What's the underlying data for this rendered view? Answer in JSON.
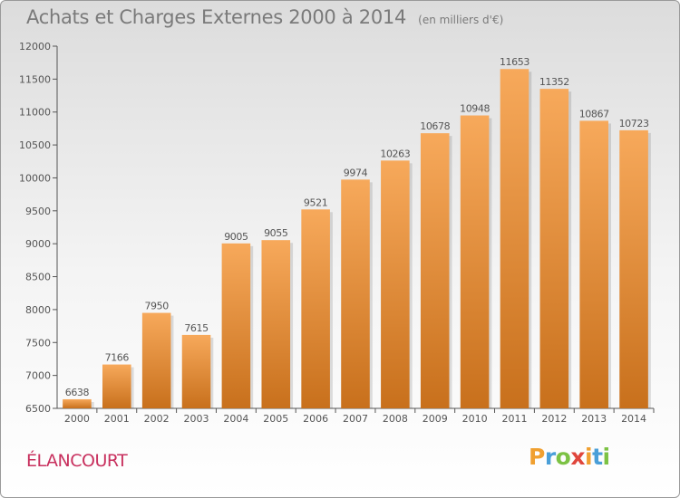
{
  "header": {
    "title": "Achats et Charges Externes 2000 à 2014",
    "unit": "(en milliers d'€)"
  },
  "footer": {
    "commune": "ÉLANCOURT",
    "logo_letters": [
      "P",
      "r",
      "o",
      "x",
      "i",
      "t",
      "i"
    ]
  },
  "colors": {
    "bar_top": "#f7a95b",
    "bar_bottom": "#c8701c",
    "axis": "#555555",
    "grid": "#cfcfcf",
    "text": "#555555",
    "commune": "#c8305e"
  },
  "chart_data": {
    "type": "bar",
    "categories": [
      "2000",
      "2001",
      "2002",
      "2003",
      "2004",
      "2005",
      "2006",
      "2007",
      "2008",
      "2009",
      "2010",
      "2011",
      "2012",
      "2013",
      "2014"
    ],
    "values": [
      6638,
      7166,
      7950,
      7615,
      9005,
      9055,
      9521,
      9974,
      10263,
      10678,
      10948,
      11653,
      11352,
      10867,
      10723
    ],
    "ylim": [
      6500,
      12000
    ],
    "yticks": [
      6500,
      7000,
      7500,
      8000,
      8500,
      9000,
      9500,
      10000,
      10500,
      11000,
      11500,
      12000
    ],
    "grid": false,
    "data_labels": true
  }
}
